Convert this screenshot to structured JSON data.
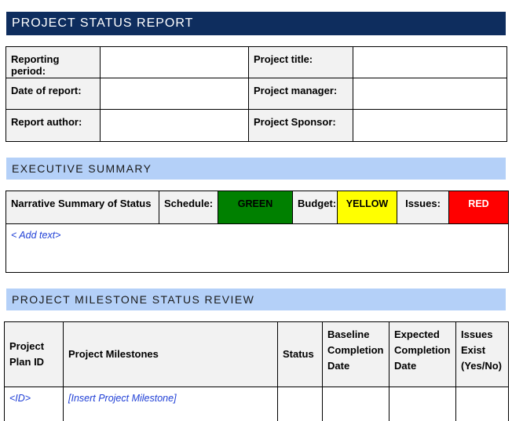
{
  "header": {
    "title": "PROJECT STATUS REPORT"
  },
  "info": {
    "reporting_period": "Reporting period:",
    "project_title": "Project title:",
    "date_of_report": "Date of report:",
    "project_manager": "Project manager:",
    "report_author": "Report author:",
    "project_sponsor": "Project Sponsor:"
  },
  "executive_summary": {
    "heading": "EXECUTIVE SUMMARY",
    "narrative_label": "Narrative Summary of Status",
    "schedule_label": "Schedule:",
    "schedule_value": "GREEN",
    "budget_label": "Budget:",
    "budget_value": "YELLOW",
    "issues_label": "Issues:",
    "issues_value": "RED",
    "placeholder": "< Add text>"
  },
  "milestones": {
    "heading": "PROJECT MILESTONE STATUS REVIEW",
    "columns": {
      "plan_id": "Project Plan ID",
      "milestones": "Project Milestones",
      "status": "Status",
      "baseline": "Baseline Completion Date",
      "expected": "Expected Completion Date",
      "issues": "Issues Exist (Yes/No)"
    },
    "rows": [
      {
        "id": "<ID>",
        "milestone": "[Insert Project Milestone]"
      }
    ]
  },
  "colors": {
    "banner_dark": "#0e2d5e",
    "banner_light": "#b4d0f8",
    "green": "#008000",
    "yellow": "#ffff00",
    "red": "#ff0000",
    "placeholder_text": "#1f3fd6"
  }
}
